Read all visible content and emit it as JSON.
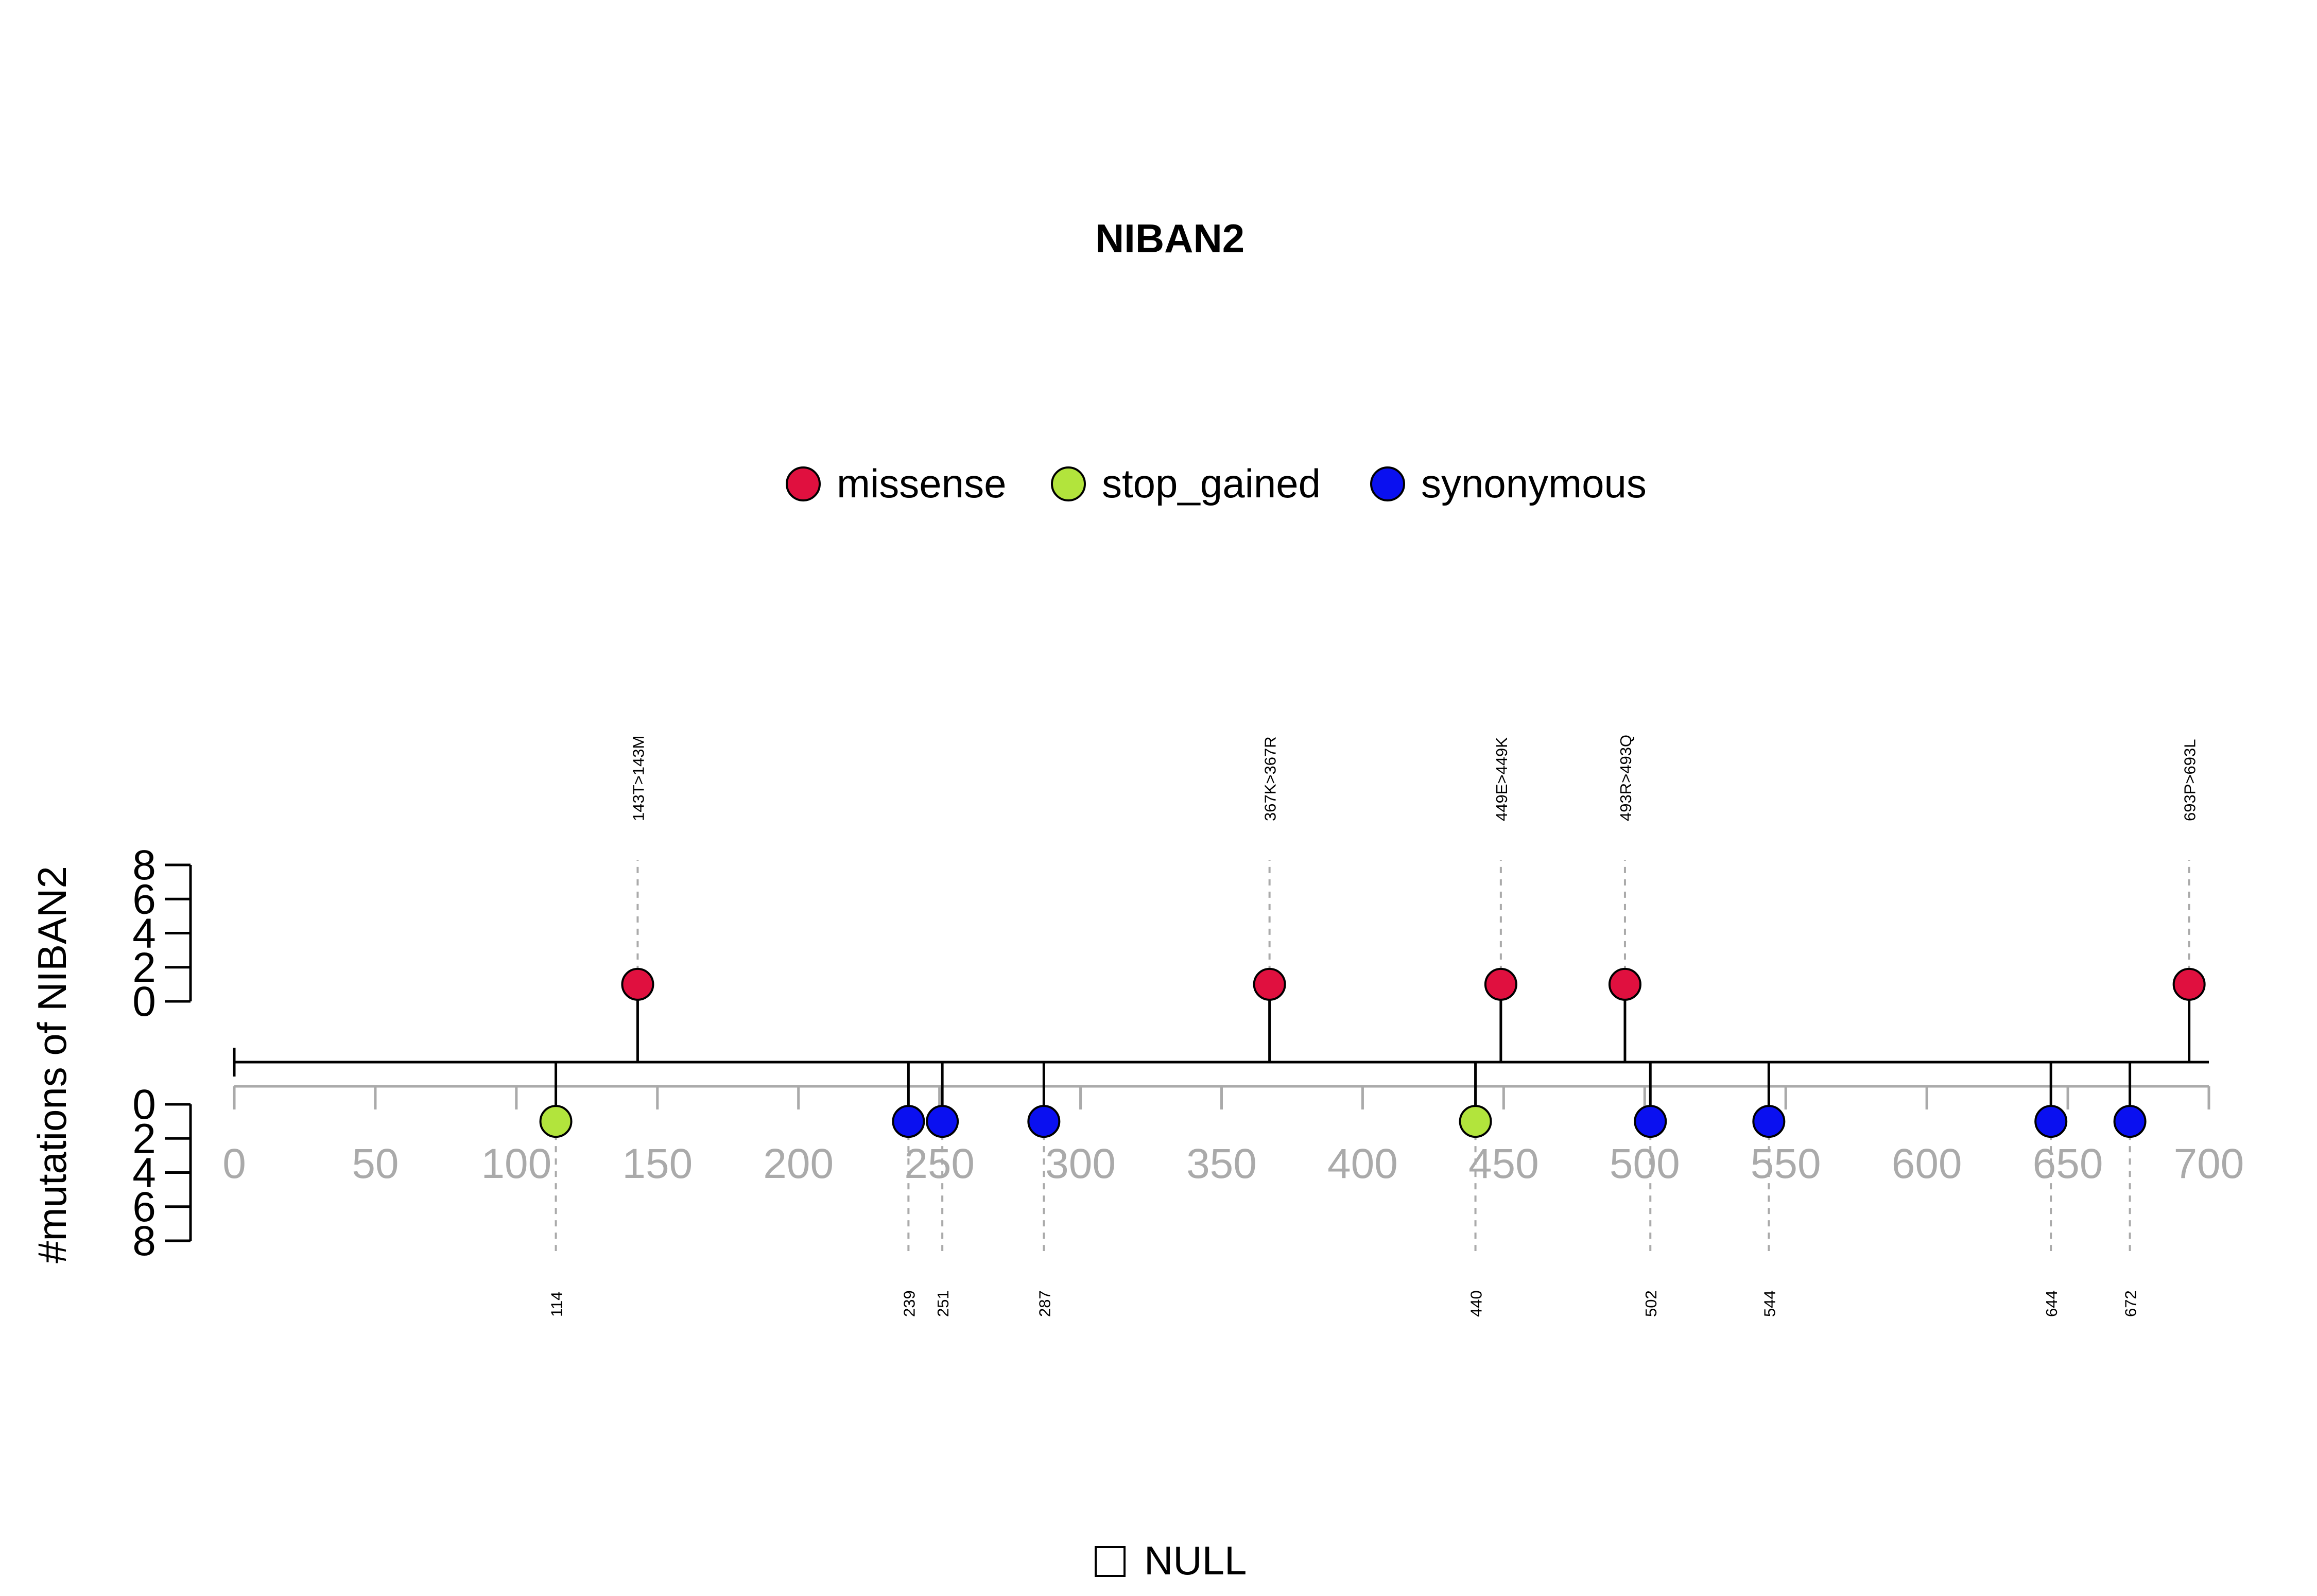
{
  "chart_data": {
    "type": "lollipop",
    "title": "NIBAN2",
    "ylabel": "#mutations of NIBAN2",
    "xlim": [
      0,
      700
    ],
    "x_ticks": [
      "0",
      "50",
      "100",
      "150",
      "200",
      "250",
      "300",
      "350",
      "400",
      "450",
      "500",
      "550",
      "600",
      "650",
      "700"
    ],
    "y_ticks": [
      "0",
      "2",
      "4",
      "6",
      "8"
    ],
    "ylim": [
      0,
      8
    ],
    "legend": [
      {
        "name": "missense",
        "color": "#E0103F"
      },
      {
        "name": "stop_gained",
        "color": "#B2E43C"
      },
      {
        "name": "synonymous",
        "color": "#0A10F0"
      }
    ],
    "legend_placement": "top-center",
    "upper_mutations": [
      {
        "position": 143,
        "count": 1,
        "type": "missense",
        "label": "143T>143M"
      },
      {
        "position": 367,
        "count": 1,
        "type": "missense",
        "label": "367K>367R"
      },
      {
        "position": 449,
        "count": 1,
        "type": "missense",
        "label": "449E>449K"
      },
      {
        "position": 493,
        "count": 1,
        "type": "missense",
        "label": "493R>493Q"
      },
      {
        "position": 693,
        "count": 1,
        "type": "missense",
        "label": "693P>693L"
      }
    ],
    "lower_mutations": [
      {
        "position": 114,
        "count": 1,
        "type": "stop_gained",
        "label": "114"
      },
      {
        "position": 239,
        "count": 1,
        "type": "synonymous",
        "label": "239"
      },
      {
        "position": 251,
        "count": 1,
        "type": "synonymous",
        "label": "251"
      },
      {
        "position": 287,
        "count": 1,
        "type": "synonymous",
        "label": "287"
      },
      {
        "position": 440,
        "count": 1,
        "type": "stop_gained",
        "label": "440"
      },
      {
        "position": 502,
        "count": 1,
        "type": "synonymous",
        "label": "502"
      },
      {
        "position": 544,
        "count": 1,
        "type": "synonymous",
        "label": "544"
      },
      {
        "position": 644,
        "count": 1,
        "type": "synonymous",
        "label": "644"
      },
      {
        "position": 672,
        "count": 1,
        "type": "synonymous",
        "label": "672"
      }
    ],
    "domain_legend": {
      "label": "NULL"
    }
  }
}
